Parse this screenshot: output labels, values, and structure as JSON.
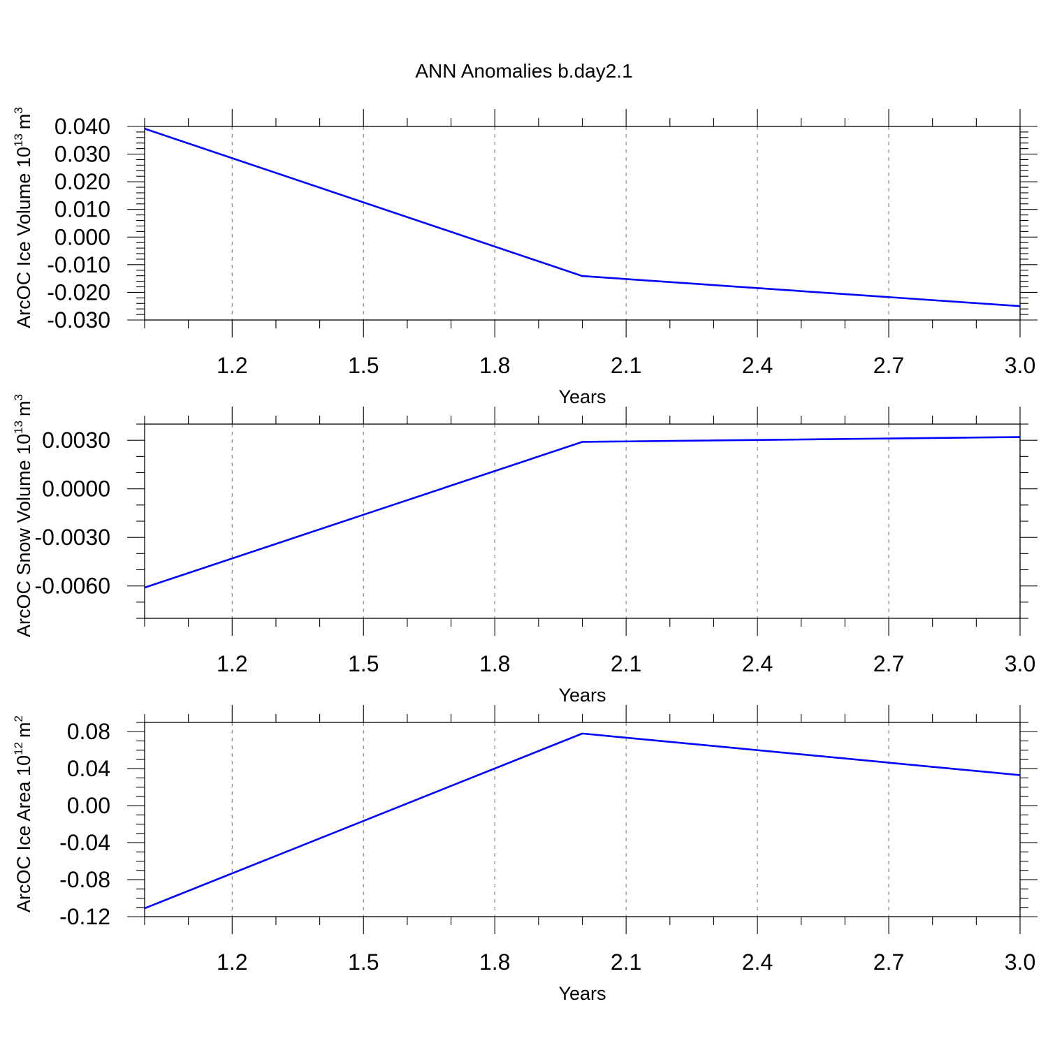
{
  "title": "ANN Anomalies b.day2.1",
  "colors": {
    "series": "#0000ff",
    "axis": "#000000",
    "grid": "#888888"
  },
  "chart_data": [
    {
      "type": "line",
      "title": "ANN Anomalies b.day2.1",
      "ylabel": "ArcOC Ice Volume",
      "ylabel_unit_base": "10",
      "ylabel_unit_exp": "13",
      "ylabel_unit_dim": "m",
      "ylabel_unit_dim_exp": "3",
      "xlabel": "Years",
      "xlim": [
        1,
        3
      ],
      "ylim": [
        -0.03,
        0.04
      ],
      "x_ticks": [
        "1.2",
        "1.5",
        "1.8",
        "2.1",
        "2.4",
        "2.7",
        "3.0"
      ],
      "y_ticks": [
        "0.040",
        "0.030",
        "0.020",
        "0.010",
        "0.000",
        "-0.010",
        "-0.020",
        "-0.030"
      ],
      "grid": "vertical dashed",
      "series": [
        {
          "x": [
            1,
            2,
            3
          ],
          "y": [
            0.0392,
            -0.0141,
            -0.025
          ]
        }
      ]
    },
    {
      "type": "line",
      "ylabel": "ArcOC Snow Volume",
      "ylabel_unit_base": "10",
      "ylabel_unit_exp": "13",
      "ylabel_unit_dim": "m",
      "ylabel_unit_dim_exp": "3",
      "xlabel": "Years",
      "xlim": [
        1,
        3
      ],
      "ylim": [
        -0.008,
        0.004
      ],
      "x_ticks": [
        "1.2",
        "1.5",
        "1.8",
        "2.1",
        "2.4",
        "2.7",
        "3.0"
      ],
      "y_ticks": [
        "0.0030",
        "0.0000",
        "-0.0030",
        "-0.0060"
      ],
      "grid": "vertical dashed",
      "series": [
        {
          "x": [
            1,
            2,
            3
          ],
          "y": [
            -0.0061,
            0.0029,
            0.0032
          ]
        }
      ]
    },
    {
      "type": "line",
      "ylabel": "ArcOC Ice Area",
      "ylabel_unit_base": "10",
      "ylabel_unit_exp": "12",
      "ylabel_unit_dim": "m",
      "ylabel_unit_dim_exp": "2",
      "xlabel": "Years",
      "xlim": [
        1,
        3
      ],
      "ylim": [
        -0.12,
        0.09
      ],
      "x_ticks": [
        "1.2",
        "1.5",
        "1.8",
        "2.1",
        "2.4",
        "2.7",
        "3.0"
      ],
      "y_ticks": [
        "0.08",
        "0.04",
        "0.00",
        "-0.04",
        "-0.08",
        "-0.12"
      ],
      "grid": "vertical dashed",
      "series": [
        {
          "x": [
            1,
            2,
            3
          ],
          "y": [
            -0.111,
            0.078,
            0.033
          ]
        }
      ]
    }
  ]
}
